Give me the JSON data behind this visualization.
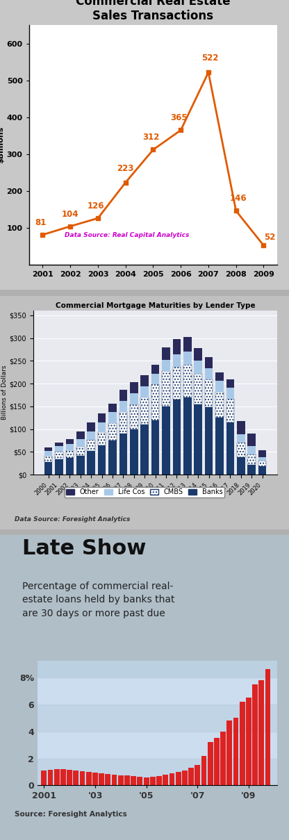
{
  "chart1": {
    "title": "Commercial Real Estate\nSales Transactions",
    "ylabel": "$Billions",
    "years": [
      2001,
      2002,
      2003,
      2004,
      2005,
      2006,
      2007,
      2008,
      2009
    ],
    "values": [
      81,
      104,
      126,
      223,
      312,
      365,
      522,
      146,
      52
    ],
    "line_color": "#e05a00",
    "marker_color": "#e05a00",
    "data_source": "Data Source: Real Capital Analytics",
    "data_source_color": "#cc00cc",
    "ylim": [
      0,
      650
    ],
    "yticks": [
      100,
      200,
      300,
      400,
      500,
      600
    ],
    "bg_color": "#ffffff",
    "panel_bg": "#d0d0d0"
  },
  "chart2": {
    "title": "Commercial Mortgage Maturities by Lender Type",
    "ylabel": "Billions of Dollars",
    "years": [
      "2000",
      "2001",
      "2002",
      "2003",
      "2004",
      "2005",
      "2006",
      "2007",
      "2008",
      "2009",
      "2010",
      "2011",
      "2012",
      "2013",
      "2014",
      "2015",
      "2016",
      "2017",
      "2018",
      "2019",
      "2020"
    ],
    "banks": [
      28,
      33,
      37,
      42,
      52,
      65,
      75,
      90,
      100,
      110,
      120,
      150,
      165,
      170,
      155,
      148,
      125,
      115,
      38,
      22,
      18
    ],
    "cmbs": [
      14,
      17,
      17,
      19,
      24,
      28,
      38,
      48,
      55,
      60,
      78,
      78,
      72,
      72,
      67,
      62,
      57,
      52,
      32,
      22,
      12
    ],
    "lifecos": [
      10,
      12,
      14,
      17,
      19,
      21,
      24,
      24,
      24,
      24,
      24,
      24,
      28,
      28,
      28,
      24,
      24,
      24,
      19,
      18,
      9
    ],
    "other": [
      8,
      8,
      10,
      17,
      19,
      21,
      19,
      24,
      24,
      24,
      19,
      28,
      33,
      33,
      28,
      24,
      19,
      19,
      28,
      28,
      14
    ],
    "color_banks": "#1a3a6b",
    "color_cmbs_face": "#ffffff",
    "color_cmbs_edge": "#1a3a6b",
    "color_lifecos": "#a8c8e8",
    "color_other": "#2a2a5a",
    "data_source": "Data Source: Foresight Analytics",
    "bg_color": "#e8eaf0",
    "panel_bg": "#c8c8c8",
    "yticks": [
      0,
      50,
      100,
      150,
      200,
      250,
      300,
      350
    ],
    "ylim": [
      0,
      360
    ]
  },
  "chart3": {
    "title_main": "Late Show",
    "title_sub": "Percentage of commercial real-\nestate loans held by banks that\nare 30 days or more past due",
    "source": "Source: Foresight Analytics",
    "bar_color": "#dd2222",
    "bg_color": "#ccddf0",
    "title_bg": "#ddeeff",
    "panel_bg": "#b8c8d8",
    "yticks": [
      0,
      2,
      4,
      6,
      8
    ],
    "ylim": [
      0,
      9.2
    ],
    "values": [
      1.1,
      1.15,
      1.2,
      1.2,
      1.15,
      1.1,
      1.05,
      1.0,
      0.95,
      0.9,
      0.85,
      0.8,
      0.75,
      0.72,
      0.68,
      0.65,
      0.6,
      0.65,
      0.7,
      0.78,
      0.88,
      1.0,
      1.1,
      1.3,
      1.5,
      2.2,
      3.2,
      3.5,
      4.0,
      4.8,
      5.0,
      6.2,
      6.5,
      7.5,
      7.8,
      8.6
    ],
    "xtick_labels": [
      "2001",
      "'03",
      "'05",
      "'07",
      "'09"
    ],
    "xtick_positions": [
      0,
      8,
      16,
      24,
      32
    ],
    "band_color": "#b8cfe0",
    "band_alpha": 0.6
  }
}
